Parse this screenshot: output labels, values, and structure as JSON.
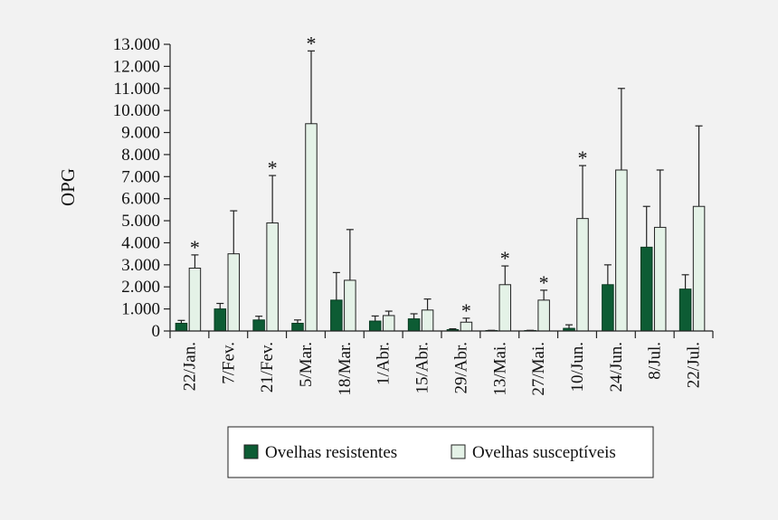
{
  "chart_data": {
    "type": "bar",
    "title": "",
    "xlabel": "",
    "ylabel": "OPG",
    "ylim": [
      0,
      13000
    ],
    "yticks": [
      0,
      1000,
      2000,
      3000,
      4000,
      5000,
      6000,
      7000,
      8000,
      9000,
      10000,
      11000,
      12000,
      13000
    ],
    "ytick_labels": [
      "0",
      "1.000",
      "2.000",
      "3.000",
      "4.000",
      "5.000",
      "6.000",
      "7.000",
      "8.000",
      "9.000",
      "10.000",
      "11.000",
      "12.000",
      "13.000"
    ],
    "categories": [
      "22/Jan.",
      "7/Fev.",
      "21/Fev.",
      "5/Mar.",
      "18/Mar.",
      "1/Abr.",
      "15/Abr.",
      "29/Abr.",
      "13/Mai.",
      "27/Mai.",
      "10/Jun.",
      "24/Jun.",
      "8/Jul.",
      "22/Jul."
    ],
    "series": [
      {
        "name": "Ovelhas resistentes",
        "color": "#0d5c34",
        "values": [
          350,
          1000,
          500,
          350,
          1400,
          450,
          550,
          60,
          20,
          20,
          120,
          2100,
          3800,
          1900
        ],
        "error": [
          480,
          1250,
          670,
          500,
          2650,
          680,
          780,
          100,
          30,
          30,
          280,
          3000,
          5650,
          2550
        ]
      },
      {
        "name": "Ovelhas susceptíveis",
        "color": "#e4f2e7",
        "values": [
          2850,
          3500,
          4900,
          9400,
          2300,
          700,
          950,
          400,
          2100,
          1400,
          5100,
          7300,
          4700,
          5650
        ],
        "error": [
          3450,
          5450,
          7050,
          12700,
          4600,
          900,
          1450,
          580,
          2950,
          1850,
          7500,
          11000,
          7300,
          9300
        ]
      }
    ],
    "annotations": [
      {
        "category": "22/Jan.",
        "text": "*"
      },
      {
        "category": "21/Fev.",
        "text": "*"
      },
      {
        "category": "5/Mar.",
        "text": "*"
      },
      {
        "category": "29/Abr.",
        "text": "*"
      },
      {
        "category": "13/Mai.",
        "text": "*"
      },
      {
        "category": "27/Mai.",
        "text": "*"
      },
      {
        "category": "10/Jun.",
        "text": "*"
      }
    ],
    "legend": {
      "position": "bottom",
      "items": [
        "Ovelhas resistentes",
        "Ovelhas susceptíveis"
      ]
    }
  }
}
